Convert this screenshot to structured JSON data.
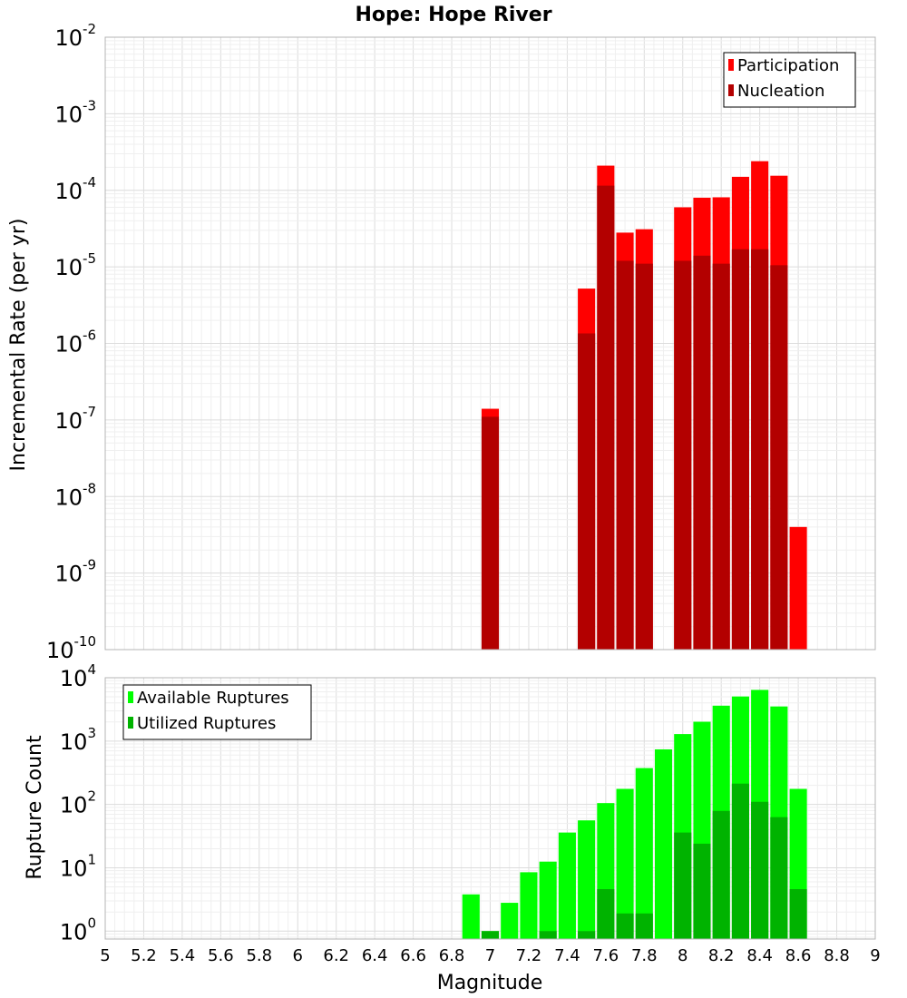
{
  "chart_data": [
    {
      "type": "bar",
      "title": "Hope: Hope River",
      "ylabel": "Incremental Rate (per yr)",
      "xlabel": "",
      "y_scale": "log",
      "ylim": [
        1e-10,
        0.01
      ],
      "xlim": [
        5,
        9
      ],
      "y_tick_labels": [
        {
          "base": "10",
          "exp": "-10"
        },
        {
          "base": "10",
          "exp": "-9"
        },
        {
          "base": "10",
          "exp": "-8"
        },
        {
          "base": "10",
          "exp": "-7"
        },
        {
          "base": "10",
          "exp": "-6"
        },
        {
          "base": "10",
          "exp": "-5"
        },
        {
          "base": "10",
          "exp": "-4"
        },
        {
          "base": "10",
          "exp": "-3"
        },
        {
          "base": "10",
          "exp": "-2"
        }
      ],
      "grid": true,
      "legend_position": "top-right",
      "x": [
        7.0,
        7.5,
        7.6,
        7.7,
        7.8,
        8.0,
        8.1,
        8.2,
        8.3,
        8.4,
        8.5,
        8.6
      ],
      "series": [
        {
          "name": "Participation",
          "color": "#ff0000",
          "values": [
            1.4e-07,
            5.2e-06,
            0.00021,
            2.8e-05,
            3.1e-05,
            6e-05,
            8e-05,
            8.1e-05,
            0.00015,
            0.00024,
            0.000155,
            4e-09
          ]
        },
        {
          "name": "Nucleation",
          "color": "#b30000",
          "values": [
            1.1e-07,
            1.35e-06,
            0.000115,
            1.2e-05,
            1.1e-05,
            1.2e-05,
            1.4e-05,
            1.1e-05,
            1.7e-05,
            1.7e-05,
            1.05e-05,
            null
          ]
        }
      ]
    },
    {
      "type": "bar",
      "title": "",
      "ylabel": "Rupture Count",
      "xlabel": "Magnitude",
      "y_scale": "log",
      "ylim": [
        0.75,
        10000
      ],
      "xlim": [
        5,
        9
      ],
      "y_tick_labels": [
        {
          "base": "10",
          "exp": "0"
        },
        {
          "base": "10",
          "exp": "1"
        },
        {
          "base": "10",
          "exp": "2"
        },
        {
          "base": "10",
          "exp": "3"
        },
        {
          "base": "10",
          "exp": "4"
        }
      ],
      "x_tick_labels": [
        "5",
        "5.2",
        "5.4",
        "5.6",
        "5.8",
        "6",
        "6.2",
        "6.4",
        "6.6",
        "6.8",
        "7",
        "7.2",
        "7.4",
        "7.6",
        "7.8",
        "8",
        "8.2",
        "8.4",
        "8.6",
        "8.8",
        "9"
      ],
      "grid": true,
      "legend_position": "top-left",
      "x": [
        6.9,
        7.0,
        7.1,
        7.2,
        7.3,
        7.4,
        7.5,
        7.6,
        7.7,
        7.8,
        7.9,
        8.0,
        8.1,
        8.2,
        8.3,
        8.4,
        8.5,
        8.6
      ],
      "series": [
        {
          "name": "Available Ruptures",
          "color": "#00ff00",
          "values": [
            3.8,
            1.0,
            2.8,
            8.5,
            12.5,
            36,
            56,
            105,
            176,
            375,
            740,
            1290,
            2020,
            3620,
            5060,
            6430,
            3520,
            176
          ]
        },
        {
          "name": "Utilized Ruptures",
          "color": "#00b300",
          "values": [
            null,
            1.0,
            null,
            null,
            1.0,
            null,
            1.0,
            4.6,
            1.9,
            1.9,
            null,
            36,
            24,
            79,
            213,
            110,
            63,
            4.6
          ]
        }
      ]
    }
  ]
}
